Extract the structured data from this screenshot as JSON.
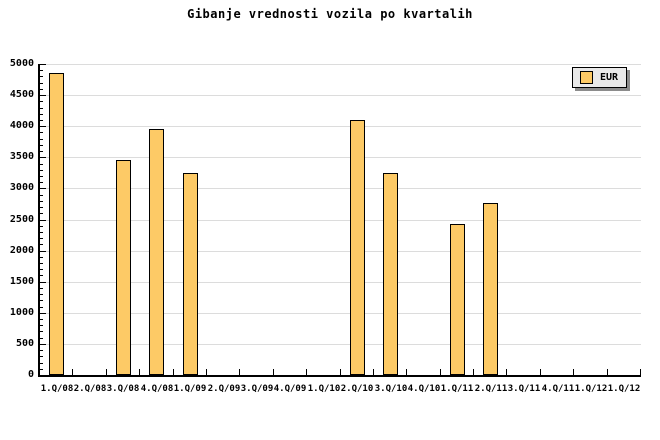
{
  "chart_data": {
    "type": "bar",
    "title": "Gibanje vrednosti vozila po kvartalih",
    "categories": [
      "1.Q/08",
      "2.Q/08",
      "3.Q/08",
      "4.Q/08",
      "1.Q/09",
      "2.Q/09",
      "3.Q/09",
      "4.Q/09",
      "1.Q/10",
      "2.Q/10",
      "3.Q/10",
      "4.Q/10",
      "1.Q/11",
      "2.Q/11",
      "3.Q/11",
      "4.Q/11",
      "1.Q/12",
      "1.Q/12"
    ],
    "series": [
      {
        "name": "EUR",
        "values": [
          4850,
          null,
          3450,
          3960,
          3240,
          null,
          null,
          null,
          null,
          4100,
          3240,
          null,
          2430,
          2770,
          null,
          null,
          null,
          null
        ]
      }
    ],
    "xlabel": "",
    "ylabel": "",
    "ylim": [
      0,
      5000
    ],
    "y_ticks": [
      "0",
      "500",
      "1000",
      "1500",
      "2000",
      "2500",
      "3000",
      "3500",
      "4000",
      "4500",
      "5000"
    ],
    "y_major_tick_step": 500,
    "y_minor_tick_step": 100,
    "grid": "horizontal-major",
    "legend_position": "top-right"
  },
  "colors": {
    "background": "#FFFFFF",
    "text": "#000000",
    "axis": "#000000",
    "gridline": "#DCDCDC",
    "bar_fill": "#FDCA66",
    "bar_border": "#000000",
    "legend_bg": "#E9E9E9",
    "legend_border": "#000000",
    "legend_shadow": "#8C8C8C"
  }
}
